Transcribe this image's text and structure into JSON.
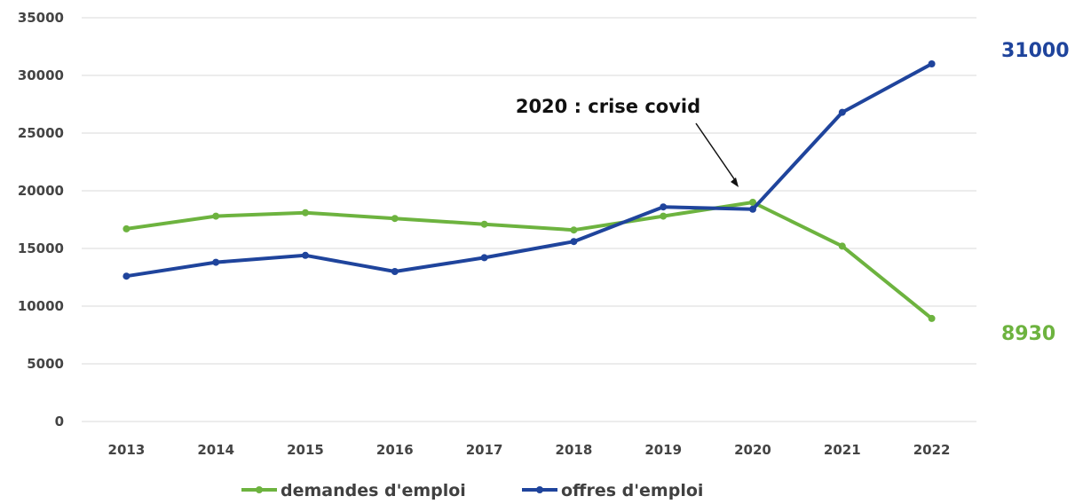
{
  "chart_data": {
    "type": "line",
    "categories": [
      "2013",
      "2014",
      "2015",
      "2016",
      "2017",
      "2018",
      "2019",
      "2020",
      "2021",
      "2022"
    ],
    "y_ticks": [
      "0",
      "5000",
      "10000",
      "15000",
      "20000",
      "25000",
      "30000",
      "35000"
    ],
    "ylim": [
      0,
      35000
    ],
    "grid": true,
    "legend_position": "bottom",
    "series": [
      {
        "name": "demandes d'emploi",
        "color": "#6db33f",
        "values": [
          16700,
          17800,
          18100,
          17600,
          17100,
          16600,
          17800,
          19000,
          15200,
          8930
        ],
        "end_label": "8930"
      },
      {
        "name": "offres d'emploi",
        "color": "#1f449c",
        "values": [
          12600,
          13800,
          14400,
          13000,
          14200,
          15600,
          18600,
          18400,
          26800,
          31000
        ],
        "end_label": "31000"
      }
    ],
    "annotation": {
      "text": "2020 : crise covid",
      "arrow_target": "2020"
    }
  }
}
